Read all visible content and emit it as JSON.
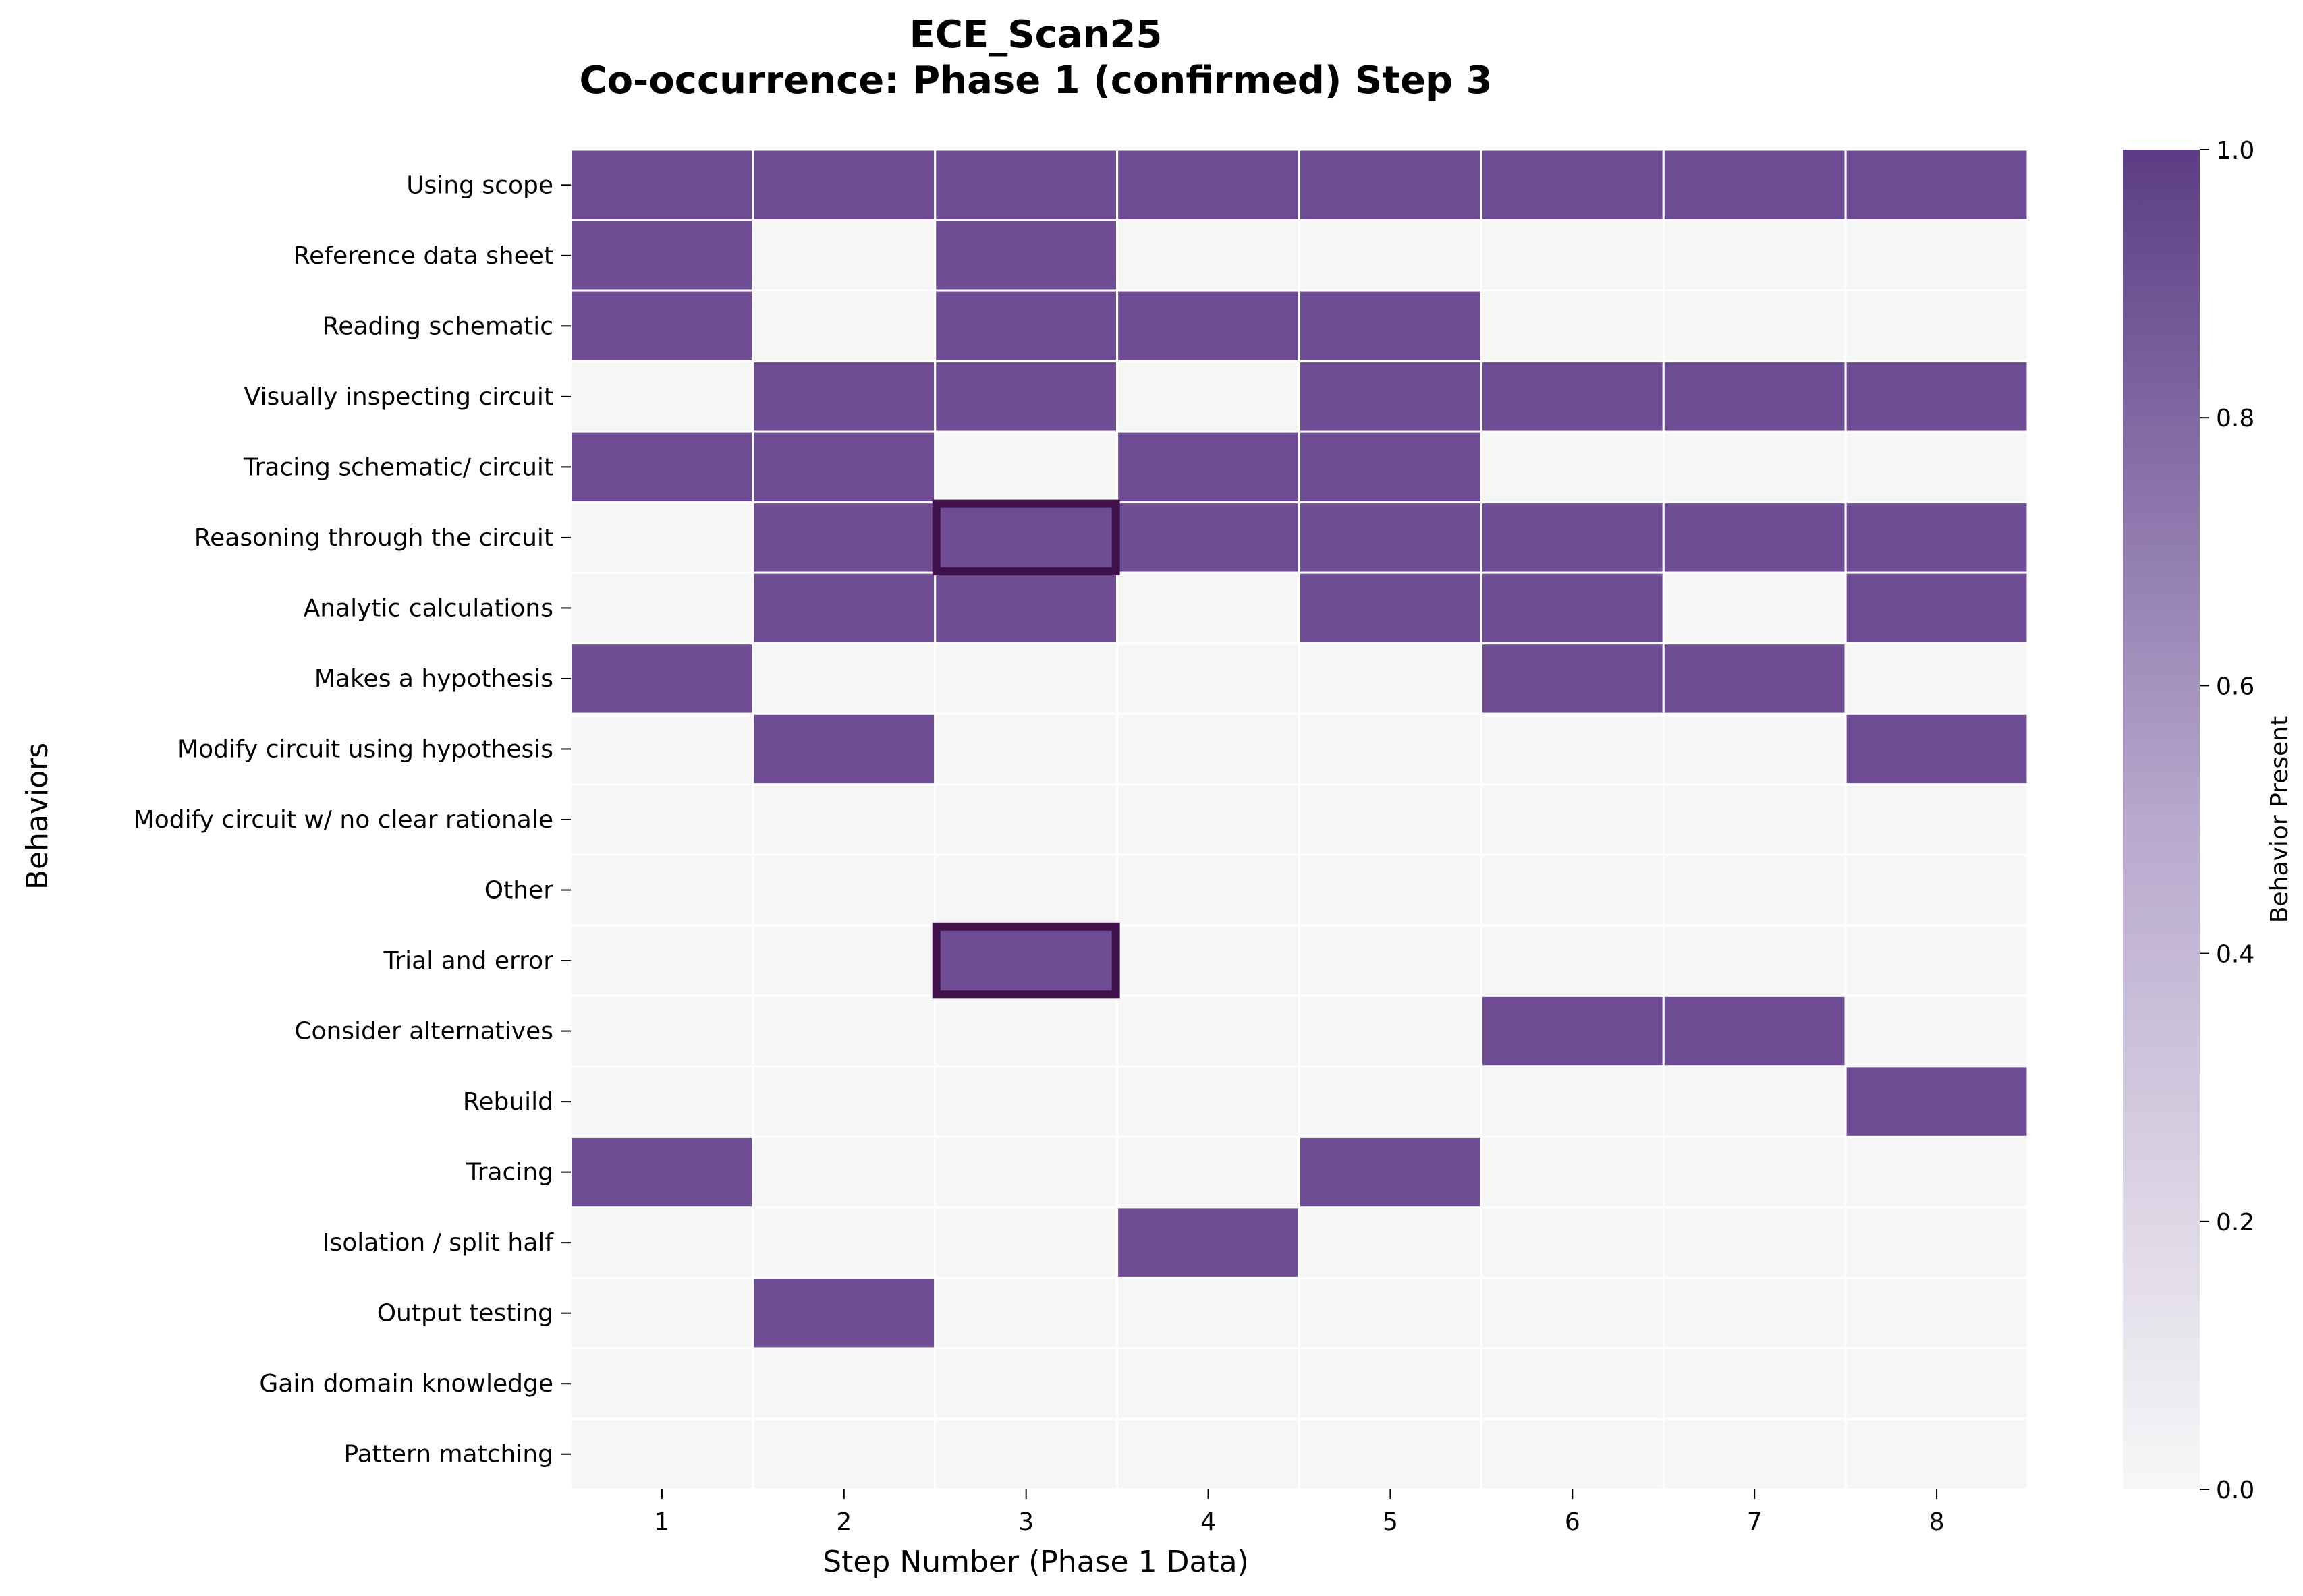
{
  "chart_data": {
    "type": "heatmap",
    "title_line1": "ECE_Scan25",
    "title_line2": "Co-occurrence: Phase 1 (confirmed) Step 3",
    "xlabel": "Step Number (Phase 1 Data)",
    "ylabel": "Behaviors",
    "x_categories": [
      "1",
      "2",
      "3",
      "4",
      "5",
      "6",
      "7",
      "8"
    ],
    "y_categories": [
      "Using scope",
      "Reference data sheet",
      "Reading schematic",
      "Visually inspecting circuit",
      "Tracing schematic/ circuit",
      "Reasoning through the circuit",
      "Analytic calculations",
      "Makes a hypothesis",
      "Modify circuit using hypothesis",
      "Modify circuit w/ no clear rationale",
      "Other",
      "Trial and error",
      "Consider alternatives",
      "Rebuild",
      "Tracing",
      "Isolation / split half",
      "Output testing",
      "Gain domain knowledge",
      "Pattern matching"
    ],
    "values": [
      [
        1,
        1,
        1,
        1,
        1,
        1,
        1,
        1
      ],
      [
        1,
        0,
        1,
        0,
        0,
        0,
        0,
        0
      ],
      [
        1,
        0,
        1,
        1,
        1,
        0,
        0,
        0
      ],
      [
        0,
        1,
        1,
        0,
        1,
        1,
        1,
        1
      ],
      [
        1,
        1,
        0,
        1,
        1,
        0,
        0,
        0
      ],
      [
        0,
        1,
        1,
        1,
        1,
        1,
        1,
        1
      ],
      [
        0,
        1,
        1,
        0,
        1,
        1,
        0,
        1
      ],
      [
        1,
        0,
        0,
        0,
        0,
        1,
        1,
        0
      ],
      [
        0,
        1,
        0,
        0,
        0,
        0,
        0,
        1
      ],
      [
        0,
        0,
        0,
        0,
        0,
        0,
        0,
        0
      ],
      [
        0,
        0,
        0,
        0,
        0,
        0,
        0,
        0
      ],
      [
        0,
        0,
        1,
        0,
        0,
        0,
        0,
        0
      ],
      [
        0,
        0,
        0,
        0,
        0,
        1,
        1,
        0
      ],
      [
        0,
        0,
        0,
        0,
        0,
        0,
        0,
        1
      ],
      [
        1,
        0,
        0,
        0,
        1,
        0,
        0,
        0
      ],
      [
        0,
        0,
        0,
        1,
        0,
        0,
        0,
        0
      ],
      [
        0,
        1,
        0,
        0,
        0,
        0,
        0,
        0
      ],
      [
        0,
        0,
        0,
        0,
        0,
        0,
        0,
        0
      ],
      [
        0,
        0,
        0,
        0,
        0,
        0,
        0,
        0
      ]
    ],
    "highlighted_cells": [
      {
        "behavior": "Reasoning through the circuit",
        "step": "3"
      },
      {
        "behavior": "Trial and error",
        "step": "3"
      }
    ],
    "colorbar": {
      "label": "Behavior Present",
      "range": [
        0.0,
        1.0
      ],
      "ticks": [
        "0.0",
        "0.2",
        "0.4",
        "0.6",
        "0.8",
        "1.0"
      ]
    },
    "colors": {
      "present": "#6e4d94",
      "absent": "#f6f6f6",
      "colormap_low": "#f7f7f7",
      "colormap_high": "#5c3d85",
      "highlight": "#3f1049"
    }
  }
}
